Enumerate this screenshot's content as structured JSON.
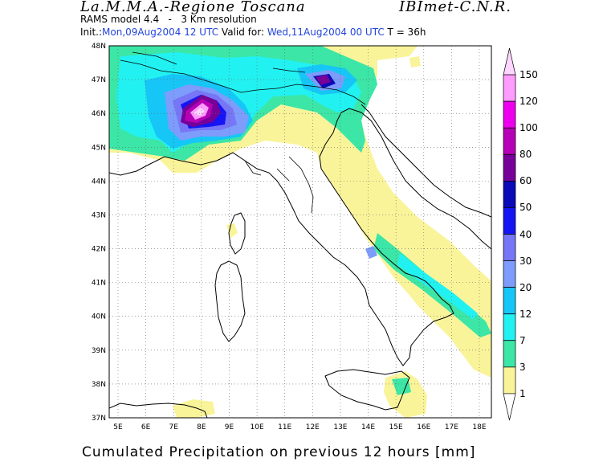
{
  "header": {
    "title_left": "La.M.M.A.-Regione Toscana",
    "title_right": "IBImet-C.N.R.",
    "model_line": "RAMS model 4.4   -   3 Km resolution",
    "init_label": "Init.:",
    "init_value": "Mon,09Aug2004 12 UTC",
    "valid_label": "Valid for:",
    "valid_value": "Wed,11Aug2004 00 UTC",
    "step": "T = 36h"
  },
  "map": {
    "lat_labels": [
      "48N",
      "47N",
      "46N",
      "45N",
      "44N",
      "43N",
      "42N",
      "41N",
      "40N",
      "39N",
      "38N",
      "37N"
    ],
    "lon_labels": [
      "5E",
      "6E",
      "7E",
      "8E",
      "9E",
      "10E",
      "11E",
      "12E",
      "13E",
      "14E",
      "15E",
      "16E",
      "17E",
      "18E"
    ]
  },
  "legend": {
    "levels": [
      "1",
      "3",
      "7",
      "12",
      "20",
      "30",
      "40",
      "50",
      "60",
      "80",
      "100",
      "120",
      "150"
    ],
    "colors": [
      "#ffffff",
      "#f9f49a",
      "#3ce6a6",
      "#22f1f1",
      "#16c6f6",
      "#7e9cfb",
      "#7676f6",
      "#1515f3",
      "#0a0ab8",
      "#770098",
      "#b600b6",
      "#ee00ee",
      "#ff9cff",
      "#ffd6ff"
    ]
  },
  "caption": "Cumulated Precipitation on previous 12 hours [mm]"
}
